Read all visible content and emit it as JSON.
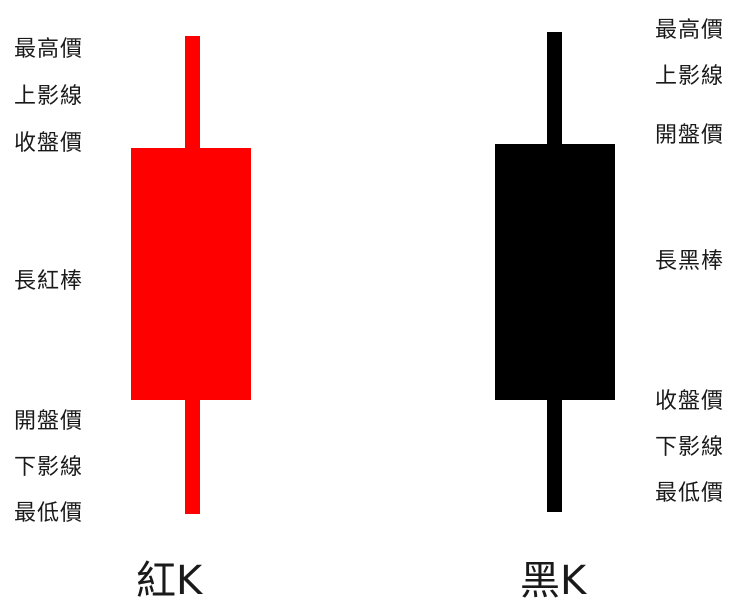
{
  "red_candle": {
    "color": "#ff0000",
    "caption": "紅K",
    "labels": {
      "high": "最高價",
      "upper_shadow": "上影線",
      "close": "收盤價",
      "body": "長紅棒",
      "open": "開盤價",
      "lower_shadow": "下影線",
      "low": "最低價"
    }
  },
  "black_candle": {
    "color": "#000000",
    "caption": "黑K",
    "labels": {
      "high": "最高價",
      "upper_shadow": "上影線",
      "open": "開盤價",
      "body": "長黑棒",
      "close": "收盤價",
      "lower_shadow": "下影線",
      "low": "最低價"
    }
  }
}
